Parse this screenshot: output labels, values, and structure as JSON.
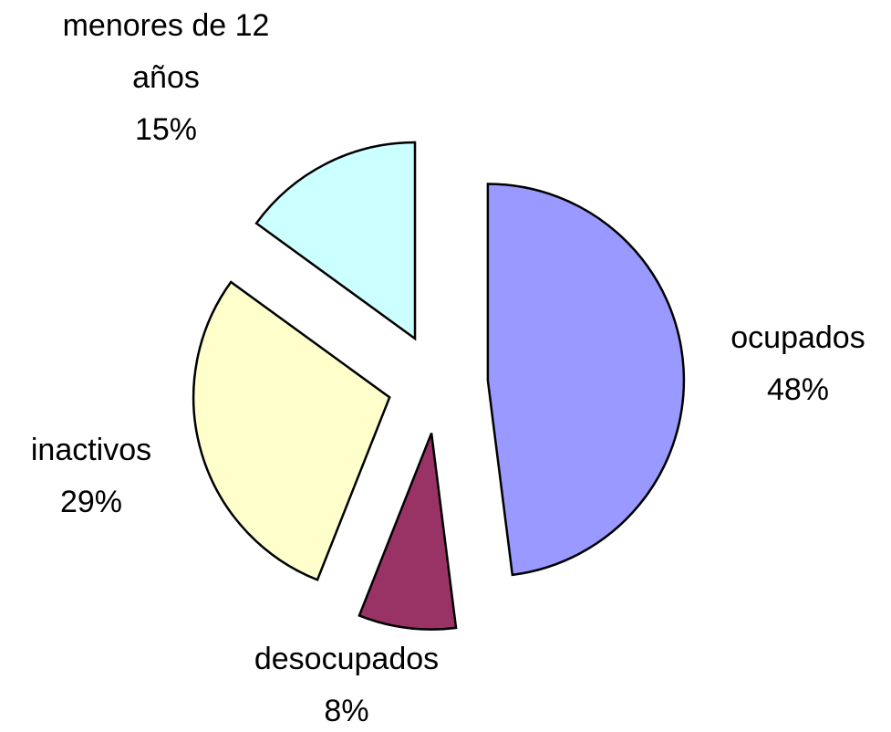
{
  "chart_data": {
    "type": "pie",
    "categories": [
      "ocupados",
      "desocupados",
      "inactivos",
      "menores de 12 años"
    ],
    "values": [
      48,
      8,
      29,
      15
    ],
    "value_labels": [
      "48%",
      "8%",
      "29%",
      "15%"
    ],
    "colors": [
      "#9999ff",
      "#993366",
      "#ffffcc",
      "#ccffff"
    ]
  }
}
